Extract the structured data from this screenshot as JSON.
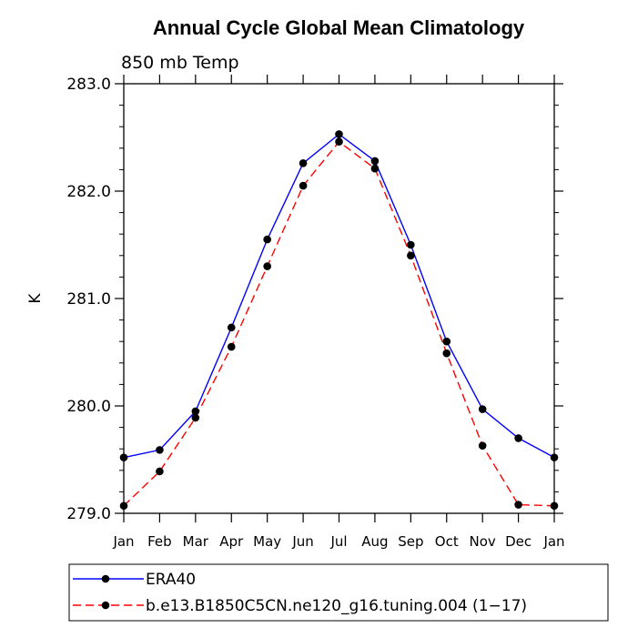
{
  "chart_data": {
    "type": "line",
    "title": "Annual Cycle Global Mean Climatology",
    "subtitle": "850 mb Temp",
    "ylabel": "K",
    "xlabel": "",
    "categories": [
      "Jan",
      "Feb",
      "Mar",
      "Apr",
      "May",
      "Jun",
      "Jul",
      "Aug",
      "Sep",
      "Oct",
      "Nov",
      "Dec",
      "Jan"
    ],
    "ylim": [
      279.0,
      283.0
    ],
    "yticks": [
      "279.0",
      "280.0",
      "281.0",
      "282.0",
      "283.0"
    ],
    "grid": false,
    "legend_position": "bottom",
    "series": [
      {
        "name": "ERA40",
        "color": "#0000ff",
        "dash": "solid",
        "values": [
          279.52,
          279.59,
          279.95,
          280.73,
          281.55,
          282.26,
          282.53,
          282.28,
          281.5,
          280.6,
          279.97,
          279.7,
          279.52
        ]
      },
      {
        "name": "b.e13.B1850C5CN.ne120_g16.tuning.004 (1−17)",
        "color": "#ff0000",
        "dash": "dashed",
        "values": [
          279.07,
          279.39,
          279.89,
          280.55,
          281.3,
          282.05,
          282.46,
          282.21,
          281.4,
          280.49,
          279.63,
          279.08,
          279.07
        ]
      }
    ]
  }
}
